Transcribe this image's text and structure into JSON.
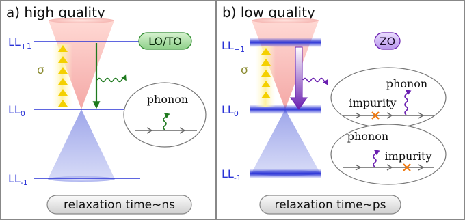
{
  "left": {
    "title": "a) high quality",
    "levels": {
      "top": "LL",
      "top_sub": "+1",
      "mid": "LL",
      "mid_sub": "0",
      "bot": "LL",
      "bot_sub": "-1"
    },
    "sigma": "σ",
    "sigma_sup": "−",
    "badge": "LO/TO",
    "bubble_label": "phonon",
    "relaxation": "relaxation time~ns"
  },
  "right": {
    "title": "b) low quality",
    "levels": {
      "top": "LL",
      "top_sub": "+1",
      "mid": "LL",
      "mid_sub": "0",
      "bot": "LL",
      "bot_sub": "-1"
    },
    "sigma": "σ",
    "sigma_sup": "−",
    "badge": "ZO",
    "bubble1": {
      "phonon": "phonon",
      "impurity": "impurity"
    },
    "bubble2": {
      "phonon": "phonon",
      "impurity": "impurity"
    },
    "relaxation": "relaxation time~ps"
  },
  "colors": {
    "level_blue": "#2a33d6",
    "badge_green": "#2e8b2e",
    "badge_purple": "#6a1fb0",
    "arrow_green": "#1f7a1f",
    "arrow_purple": "#6a1fb0",
    "impurity_orange": "#f07a10",
    "sigma_olive": "#8a8a30"
  }
}
